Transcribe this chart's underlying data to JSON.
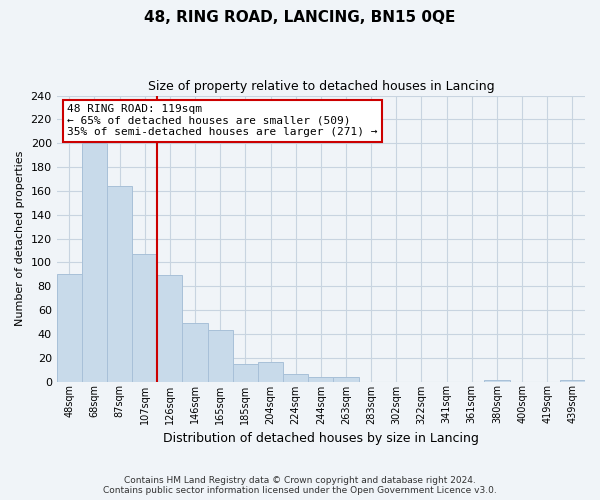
{
  "title": "48, RING ROAD, LANCING, BN15 0QE",
  "subtitle": "Size of property relative to detached houses in Lancing",
  "xlabel": "Distribution of detached houses by size in Lancing",
  "ylabel": "Number of detached properties",
  "bar_labels": [
    "48sqm",
    "68sqm",
    "87sqm",
    "107sqm",
    "126sqm",
    "146sqm",
    "165sqm",
    "185sqm",
    "204sqm",
    "224sqm",
    "244sqm",
    "263sqm",
    "283sqm",
    "302sqm",
    "322sqm",
    "341sqm",
    "361sqm",
    "380sqm",
    "400sqm",
    "419sqm",
    "439sqm"
  ],
  "bar_values": [
    90,
    200,
    164,
    107,
    89,
    49,
    43,
    15,
    16,
    6,
    4,
    4,
    0,
    0,
    0,
    0,
    0,
    1,
    0,
    0,
    1
  ],
  "bar_color": "#c8daea",
  "bar_edge_color": "#a8c0d8",
  "red_line_x": 3.5,
  "annotation_text": "48 RING ROAD: 119sqm\n← 65% of detached houses are smaller (509)\n35% of semi-detached houses are larger (271) →",
  "annotation_box_color": "white",
  "annotation_box_edge_color": "#cc0000",
  "ylim": [
    0,
    240
  ],
  "yticks": [
    0,
    20,
    40,
    60,
    80,
    100,
    120,
    140,
    160,
    180,
    200,
    220,
    240
  ],
  "footer_line1": "Contains HM Land Registry data © Crown copyright and database right 2024.",
  "footer_line2": "Contains public sector information licensed under the Open Government Licence v3.0.",
  "background_color": "#f0f4f8",
  "grid_color": "#c8d4e0",
  "title_fontsize": 11,
  "subtitle_fontsize": 9,
  "ylabel_fontsize": 8,
  "xlabel_fontsize": 9,
  "tick_fontsize": 8,
  "xtick_fontsize": 7
}
